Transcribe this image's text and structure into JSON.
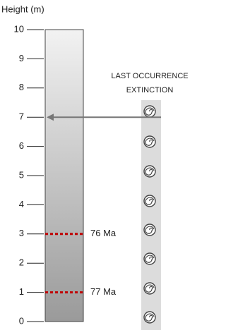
{
  "axis": {
    "label": "Height (m)",
    "ylim": [
      0,
      10
    ],
    "yticks": [
      0,
      1,
      2,
      3,
      4,
      5,
      6,
      7,
      8,
      9,
      10
    ]
  },
  "markers": [
    {
      "height": 3,
      "label": "76 Ma",
      "color": "#c00000"
    },
    {
      "height": 1,
      "label": "77 Ma",
      "color": "#c00000"
    }
  ],
  "annotation": {
    "lines": [
      "LAST OCCURRENCE",
      "EXTINCTION"
    ],
    "height": 7
  }
}
